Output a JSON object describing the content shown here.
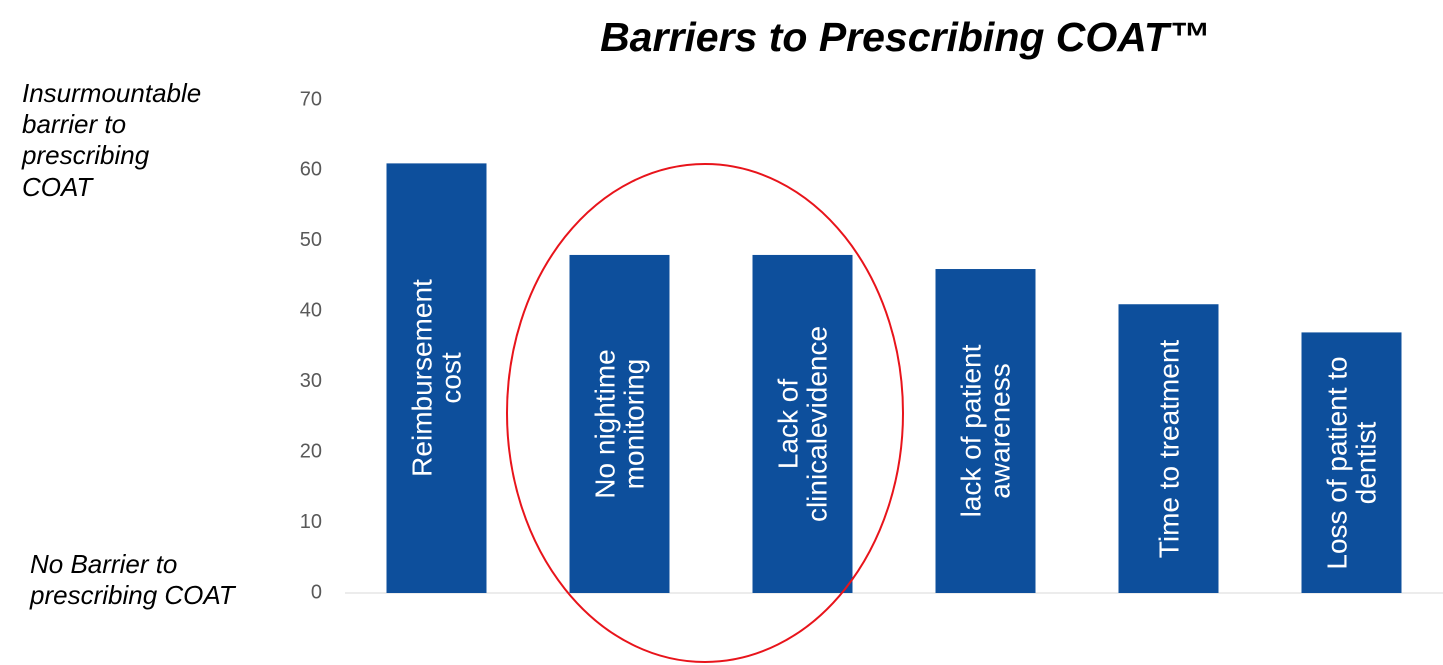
{
  "chart_data": {
    "type": "bar",
    "title": "Barriers to Prescribing COAT™",
    "annotations": [
      "Insurmountable\nbarrier to\nprescribing\nCOAT",
      "No Barrier to\nprescribing COAT"
    ],
    "categories": [
      "Reimbursement\ncost",
      "No nightime\nmonitoring",
      "Lack of\nclinicalevidence",
      "lack of patient\nawareness",
      "Time to treatment",
      "Loss of patient to\ndentist"
    ],
    "values": [
      61,
      48,
      48,
      46,
      41,
      37
    ],
    "color": "#0d4f9c",
    "ylim": [
      0,
      70
    ],
    "yticks": [
      0,
      10,
      20,
      30,
      40,
      50,
      60,
      70
    ],
    "grid": false
  }
}
